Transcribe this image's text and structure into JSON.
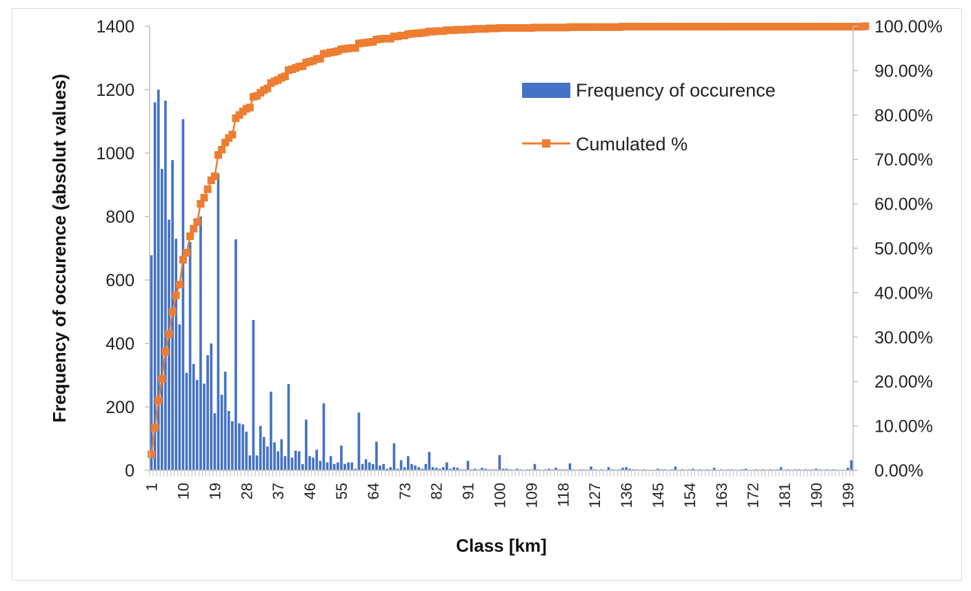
{
  "chart_data": {
    "type": "bar",
    "title": "",
    "xlabel": "Class [km]",
    "ylabel": "Frequency of occurence (absolut values)",
    "ylim": [
      0,
      1400
    ],
    "y2lim": [
      0,
      1
    ],
    "y_ticks": [
      "0",
      "200",
      "400",
      "600",
      "800",
      "1000",
      "1200",
      "1400"
    ],
    "y2_ticks": [
      "0.00%",
      "10.00%",
      "20.00%",
      "30.00%",
      "40.00%",
      "50.00%",
      "60.00%",
      "70.00%",
      "80.00%",
      "90.00%",
      "100.00%"
    ],
    "x_ticks": [
      "1",
      "10",
      "19",
      "28",
      "37",
      "46",
      "55",
      "64",
      "73",
      "82",
      "91",
      "100",
      "109",
      "118",
      "127",
      "136",
      "145",
      "154",
      "163",
      "172",
      "181",
      "190",
      "199"
    ],
    "legend_position": "top-right",
    "series": [
      {
        "name": "Frequency of occurence",
        "type": "bar",
        "axis": "left",
        "color": "#4472c4",
        "values": [
          678,
          1160,
          1200,
          950,
          1165,
          790,
          978,
          730,
          460,
          1107,
          307,
          720,
          335,
          285,
          800,
          273,
          363,
          400,
          180,
          935,
          238,
          311,
          187,
          155,
          728,
          148,
          145,
          122,
          47,
          474,
          47,
          140,
          105,
          75,
          248,
          88,
          60,
          98,
          45,
          272,
          40,
          62,
          60,
          20,
          160,
          45,
          40,
          65,
          30,
          211,
          25,
          45,
          20,
          25,
          78,
          20,
          25,
          25,
          5,
          182,
          20,
          35,
          25,
          20,
          90,
          15,
          20,
          5,
          10,
          85,
          5,
          32,
          10,
          45,
          20,
          15,
          10,
          5,
          20,
          58,
          10,
          8,
          5,
          10,
          25,
          5,
          10,
          8,
          3,
          3,
          30,
          3,
          5,
          3,
          8,
          5,
          3,
          3,
          3,
          48,
          5,
          5,
          3,
          2,
          5,
          3,
          2,
          3,
          3,
          20,
          3,
          2,
          3,
          5,
          3,
          8,
          3,
          3,
          3,
          22,
          3,
          2,
          3,
          3,
          2,
          12,
          3,
          2,
          3,
          2,
          10,
          3,
          2,
          3,
          8,
          10,
          5,
          3,
          3,
          2,
          3,
          2,
          2,
          2,
          5,
          3,
          3,
          2,
          3,
          12,
          2,
          3,
          2,
          3,
          5,
          2,
          3,
          2,
          3,
          2,
          8,
          2,
          3,
          2,
          3,
          3,
          2,
          2,
          3,
          5,
          2,
          2,
          3,
          2,
          3,
          2,
          3,
          2,
          3,
          10,
          2,
          3,
          2,
          3,
          3,
          2,
          3,
          2,
          3,
          5,
          3,
          2,
          3,
          2,
          3,
          2,
          2,
          2,
          8,
          32
        ]
      },
      {
        "name": "Cumulated %",
        "type": "line",
        "axis": "right",
        "color": "#ed7d31",
        "values": [
          0.036,
          0.096,
          0.157,
          0.206,
          0.267,
          0.307,
          0.357,
          0.394,
          0.418,
          0.474,
          0.49,
          0.527,
          0.544,
          0.559,
          0.6,
          0.614,
          0.633,
          0.653,
          0.662,
          0.71,
          0.722,
          0.738,
          0.748,
          0.756,
          0.793,
          0.8,
          0.808,
          0.814,
          0.817,
          0.841,
          0.843,
          0.85,
          0.856,
          0.86,
          0.872,
          0.876,
          0.879,
          0.884,
          0.887,
          0.901,
          0.903,
          0.906,
          0.909,
          0.91,
          0.918,
          0.92,
          0.922,
          0.926,
          0.927,
          0.938,
          0.939,
          0.941,
          0.942,
          0.944,
          0.948,
          0.949,
          0.95,
          0.951,
          0.951,
          0.961,
          0.962,
          0.963,
          0.964,
          0.965,
          0.97,
          0.971,
          0.972,
          0.972,
          0.972,
          0.977,
          0.977,
          0.979,
          0.979,
          0.982,
          0.983,
          0.984,
          0.984,
          0.985,
          0.986,
          0.988,
          0.988,
          0.989,
          0.989,
          0.989,
          0.991,
          0.991,
          0.991,
          0.992,
          0.992,
          0.992,
          0.993,
          0.993,
          0.994,
          0.994,
          0.994,
          0.994,
          0.995,
          0.995,
          0.995,
          0.996,
          0.996,
          0.996,
          0.996,
          0.996,
          0.996,
          0.996,
          0.996,
          0.996,
          0.996,
          0.997,
          0.997,
          0.997,
          0.997,
          0.997,
          0.997,
          0.997,
          0.997,
          0.997,
          0.997,
          0.998,
          0.998,
          0.998,
          0.998,
          0.998,
          0.998,
          0.998,
          0.998,
          0.998,
          0.998,
          0.998,
          0.998,
          0.998,
          0.998,
          0.998,
          0.999,
          0.999,
          0.999,
          0.999,
          0.999,
          0.999,
          0.999,
          0.999,
          0.999,
          0.999,
          0.999,
          0.999,
          0.999,
          0.999,
          0.999,
          0.999,
          0.999,
          0.999,
          0.999,
          0.999,
          0.999,
          0.999,
          0.999,
          0.999,
          0.999,
          0.999,
          0.999,
          0.999,
          0.999,
          0.999,
          0.999,
          0.999,
          0.999,
          0.999,
          0.999,
          0.999,
          0.999,
          0.999,
          0.999,
          0.999,
          0.999,
          0.999,
          0.999,
          0.999,
          0.999,
          0.999,
          0.999,
          0.999,
          0.999,
          0.999,
          0.999,
          0.999,
          0.999,
          0.999,
          0.999,
          0.999,
          0.999,
          0.999,
          0.999,
          0.999,
          0.999,
          0.999,
          0.999,
          0.999,
          0.999,
          0.999,
          0.999,
          0.999,
          0.999,
          1.0
        ]
      }
    ]
  }
}
